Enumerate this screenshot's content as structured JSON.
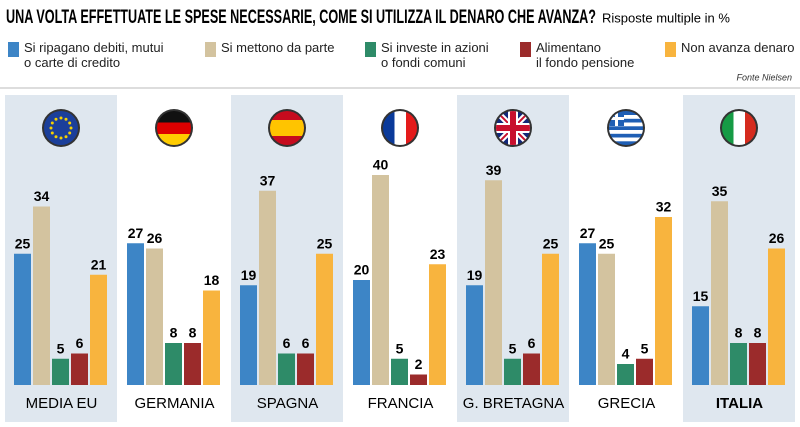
{
  "chart_data": {
    "type": "bar",
    "title": "UNA VOLTA EFFETTUATE LE SPESE NECESSARIE, COME SI UTILIZZA IL DENARO CHE AVANZA?",
    "subtitle": "Risposte multiple in %",
    "source": "Fonte Nielsen",
    "categories": [
      "MEDIA EU",
      "GERMANIA",
      "SPAGNA",
      "FRANCIA",
      "G. BRETAGNA",
      "GRECIA",
      "ITALIA"
    ],
    "series": [
      {
        "name": "Si ripagano debiti, mutui\no carte di credito",
        "color": "#3d85c6",
        "values": [
          25,
          27,
          19,
          20,
          19,
          27,
          15
        ]
      },
      {
        "name": "Si mettono da parte",
        "color": "#d3c39f",
        "values": [
          34,
          26,
          37,
          40,
          39,
          25,
          35
        ]
      },
      {
        "name": "Si investe in azioni\no fondi comuni",
        "color": "#2e8b68",
        "values": [
          5,
          8,
          6,
          5,
          5,
          4,
          8
        ]
      },
      {
        "name": "Alimentano\nil fondo pensione",
        "color": "#9b2b2b",
        "values": [
          6,
          8,
          6,
          2,
          6,
          5,
          8
        ]
      },
      {
        "name": "Non avanza denaro",
        "color": "#f8b43e",
        "values": [
          21,
          18,
          25,
          23,
          25,
          32,
          26
        ]
      }
    ]
  }
}
